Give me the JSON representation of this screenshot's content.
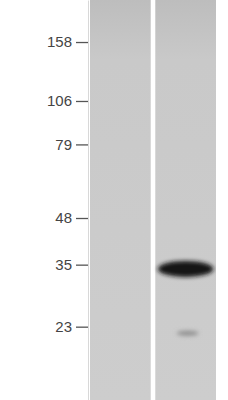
{
  "chart_data": {
    "type": "western_blot",
    "categories": [
      null,
      null
    ],
    "log": "y",
    "ylim": [
      14,
      210
    ],
    "yticks": [
      158,
      106,
      79,
      48,
      35,
      23
    ],
    "tick_labels": "y",
    "series": [
      {
        "values": [
          null,
          34
        ],
        "color": "#161616"
      },
      {
        "values": [
          null,
          22
        ],
        "color": "#8e8e8e"
      }
    ]
  }
}
